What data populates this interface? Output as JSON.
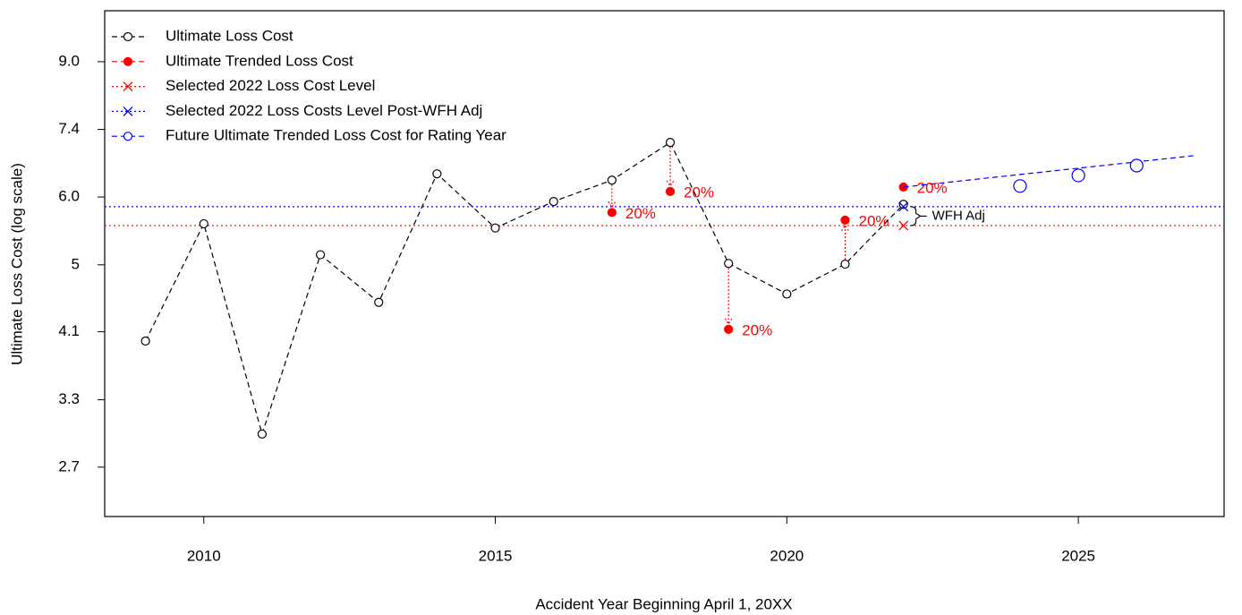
{
  "chart_data": {
    "type": "line",
    "xlabel": "Accident Year Beginning April 1, 20XX",
    "ylabel": "Ultimate Loss Cost (log scale)",
    "xlim": [
      2008.3,
      2027.5
    ],
    "ylim": [
      2.35,
      10.5
    ],
    "ylog": true,
    "xticks": [
      2010,
      2015,
      2020,
      2025
    ],
    "yticks": [
      {
        "value": 9.03,
        "label": "9.0"
      },
      {
        "value": 7.39,
        "label": "7.4"
      },
      {
        "value": 6.05,
        "label": "6.0"
      },
      {
        "value": 4.95,
        "label": "5"
      },
      {
        "value": 4.06,
        "label": "4.1"
      },
      {
        "value": 3.32,
        "label": "3.3"
      },
      {
        "value": 2.72,
        "label": "2.7"
      }
    ],
    "legend": "top-left",
    "series": [
      {
        "name": "Ultimate Loss Cost",
        "color": "#000000",
        "linestyle": "dashed",
        "marker": "open-circle",
        "connect": true,
        "x": [
          2009,
          2010,
          2011,
          2012,
          2013,
          2014,
          2015,
          2016,
          2017,
          2018,
          2019,
          2020,
          2021,
          2022
        ],
        "values": [
          3.95,
          5.59,
          3.0,
          5.1,
          4.43,
          6.48,
          5.52,
          5.97,
          6.36,
          7.11,
          4.97,
          4.54,
          4.96,
          5.92
        ]
      },
      {
        "name": "Ultimate Trended Loss Cost",
        "color": "#ff0000",
        "linestyle": "dashed",
        "marker": "filled-circle",
        "connect": false,
        "x": [
          2017,
          2018,
          2019,
          2021,
          2022
        ],
        "values": [
          5.78,
          6.15,
          4.09,
          5.65,
          6.23
        ]
      },
      {
        "name": "Selected 2022 Loss Cost Level",
        "color": "#ff0000",
        "linestyle": "dotted",
        "marker": "x",
        "hline": true,
        "x": [
          2022
        ],
        "values": [
          5.56
        ]
      },
      {
        "name": "Selected 2022 Loss Costs Level Post-WFH Adj",
        "color": "#0000ff",
        "linestyle": "dotted",
        "marker": "x",
        "hline": true,
        "x": [
          2022
        ],
        "values": [
          5.88
        ]
      },
      {
        "name": "Future Ultimate Trended Loss Cost for Rating Year",
        "color": "#0000ff",
        "linestyle": "dashed",
        "marker": "big-open-circle",
        "connect": false,
        "x": [
          2024,
          2025,
          2026
        ],
        "values": [
          6.25,
          6.45,
          6.64
        ],
        "trend": {
          "x": [
            2022,
            2027
          ],
          "values": [
            6.23,
            6.84
          ]
        }
      }
    ],
    "annotations": [
      {
        "x": 2017,
        "text": "20%",
        "arrow": true
      },
      {
        "x": 2018,
        "text": "20%",
        "arrow": true
      },
      {
        "x": 2019,
        "text": "20%",
        "arrow": true
      },
      {
        "x": 2021,
        "text": "20%",
        "arrow": true
      },
      {
        "x": 2022,
        "text": "20%",
        "arrow": false
      }
    ],
    "brace_annotation": {
      "x": 2022,
      "text": "WFH Adj"
    }
  }
}
